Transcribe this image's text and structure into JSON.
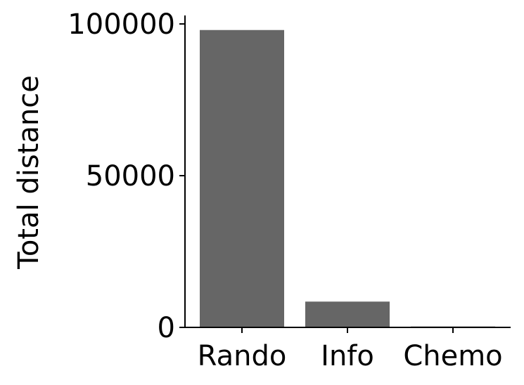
{
  "chart_data": {
    "type": "bar",
    "categories": [
      "Rando",
      "Info",
      "Chemo"
    ],
    "values": [
      98000,
      8500,
      300
    ],
    "xlabel": "",
    "ylabel": "Total distance",
    "ylim": [
      0,
      102800
    ],
    "yticks": [
      0,
      50000,
      100000
    ],
    "ytick_labels": [
      "0",
      "50000",
      "100000"
    ],
    "grid": false,
    "legend": "none",
    "bar_color": "#666666",
    "axis_color": "#000000"
  }
}
